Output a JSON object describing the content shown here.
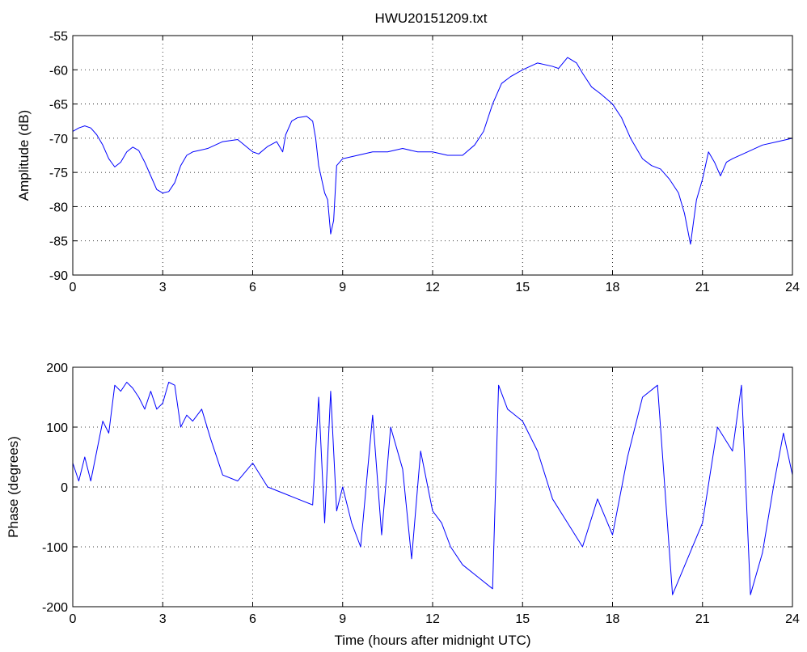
{
  "chart_data": [
    {
      "type": "line",
      "title": "HWU20151209.txt",
      "xlabel": "",
      "ylabel": "Amplitude (dB)",
      "xlim": [
        0,
        24
      ],
      "ylim": [
        -90,
        -55
      ],
      "xticks": [
        "0",
        "3",
        "6",
        "9",
        "12",
        "15",
        "18",
        "21",
        "24"
      ],
      "yticks": [
        "-55",
        "-60",
        "-65",
        "-70",
        "-75",
        "-80",
        "-85",
        "-90"
      ],
      "grid": true,
      "color": "#0000ff",
      "series": [
        {
          "x": [
            0,
            0.2,
            0.4,
            0.6,
            0.8,
            1.0,
            1.2,
            1.4,
            1.6,
            1.8,
            2.0,
            2.2,
            2.4,
            2.6,
            2.8,
            3.0,
            3.2,
            3.4,
            3.6,
            3.8,
            4.0,
            4.5,
            5.0,
            5.5,
            6.0,
            6.2,
            6.5,
            6.8,
            7.0,
            7.1,
            7.3,
            7.5,
            7.8,
            8.0,
            8.1,
            8.2,
            8.3,
            8.4,
            8.5,
            8.6,
            8.7,
            8.8,
            8.9,
            9.0,
            9.5,
            10.0,
            10.5,
            11.0,
            11.5,
            12.0,
            12.5,
            13.0,
            13.4,
            13.7,
            14.0,
            14.3,
            14.6,
            15.0,
            15.5,
            16.0,
            16.2,
            16.5,
            16.8,
            17.0,
            17.3,
            17.6,
            18.0,
            18.3,
            18.6,
            19.0,
            19.3,
            19.6,
            19.9,
            20.2,
            20.4,
            20.6,
            20.8,
            21.0,
            21.2,
            21.4,
            21.6,
            21.8,
            22.0,
            22.5,
            23.0,
            23.5,
            24.0
          ],
          "values": [
            -69,
            -68.5,
            -68.2,
            -68.5,
            -69.5,
            -71,
            -73,
            -74.2,
            -73.5,
            -72,
            -71.3,
            -71.8,
            -73.5,
            -75.5,
            -77.5,
            -78,
            -77.8,
            -76.5,
            -74,
            -72.5,
            -72,
            -71.5,
            -70.5,
            -70.2,
            -72,
            -72.3,
            -71.2,
            -70.5,
            -72,
            -69.5,
            -67.5,
            -67,
            -66.8,
            -67.5,
            -70,
            -74,
            -76,
            -78,
            -79,
            -84,
            -82,
            -74,
            -73.5,
            -73,
            -72.5,
            -72,
            -72,
            -71.5,
            -72,
            -72,
            -72.5,
            -72.5,
            -71,
            -69,
            -65,
            -62,
            -61,
            -60,
            -59,
            -59.5,
            -59.8,
            -58.2,
            -59,
            -60.5,
            -62.5,
            -63.5,
            -65,
            -67,
            -70,
            -73,
            -74,
            -74.5,
            -76,
            -78,
            -81,
            -85.5,
            -79,
            -76,
            -72,
            -73.5,
            -75.5,
            -73.5,
            -73,
            -72,
            -71,
            -70.5,
            -70
          ]
        }
      ]
    },
    {
      "type": "line",
      "title": "",
      "xlabel": "Time (hours after midnight UTC)",
      "ylabel": "Phase (degrees)",
      "xlim": [
        0,
        24
      ],
      "ylim": [
        -200,
        200
      ],
      "xticks": [
        "0",
        "3",
        "6",
        "9",
        "12",
        "15",
        "18",
        "21",
        "24"
      ],
      "yticks": [
        "200",
        "100",
        "0",
        "-100",
        "-200"
      ],
      "grid": true,
      "color": "#0000ff",
      "series": [
        {
          "x": [
            0,
            0.2,
            0.4,
            0.6,
            0.8,
            1.0,
            1.2,
            1.4,
            1.6,
            1.8,
            2.0,
            2.2,
            2.4,
            2.6,
            2.8,
            3.0,
            3.2,
            3.4,
            3.6,
            3.8,
            4.0,
            4.3,
            4.6,
            5.0,
            5.5,
            6.0,
            6.5,
            7.0,
            7.5,
            8.0,
            8.2,
            8.4,
            8.6,
            8.8,
            9.0,
            9.3,
            9.6,
            10.0,
            10.3,
            10.6,
            11.0,
            11.3,
            11.6,
            12.0,
            12.3,
            12.6,
            13.0,
            13.5,
            14.0,
            14.2,
            14.5,
            15.0,
            15.5,
            16.0,
            16.5,
            17.0,
            17.5,
            18.0,
            18.5,
            19.0,
            19.5,
            20.0,
            20.5,
            21.0,
            21.5,
            22.0,
            22.3,
            22.6,
            23.0,
            23.4,
            23.7,
            24.0
          ],
          "values": [
            40,
            10,
            50,
            10,
            60,
            110,
            90,
            170,
            160,
            175,
            165,
            150,
            130,
            160,
            130,
            140,
            175,
            170,
            100,
            120,
            110,
            130,
            80,
            20,
            10,
            40,
            0,
            -10,
            -20,
            -30,
            150,
            -60,
            160,
            -40,
            0,
            -60,
            -100,
            120,
            -80,
            100,
            30,
            -120,
            60,
            -40,
            -60,
            -100,
            -130,
            -150,
            -170,
            170,
            130,
            110,
            60,
            -20,
            -60,
            -100,
            -20,
            -80,
            50,
            150,
            170,
            -180,
            -120,
            -60,
            100,
            60,
            170,
            -180,
            -110,
            10,
            90,
            20
          ]
        }
      ]
    }
  ]
}
